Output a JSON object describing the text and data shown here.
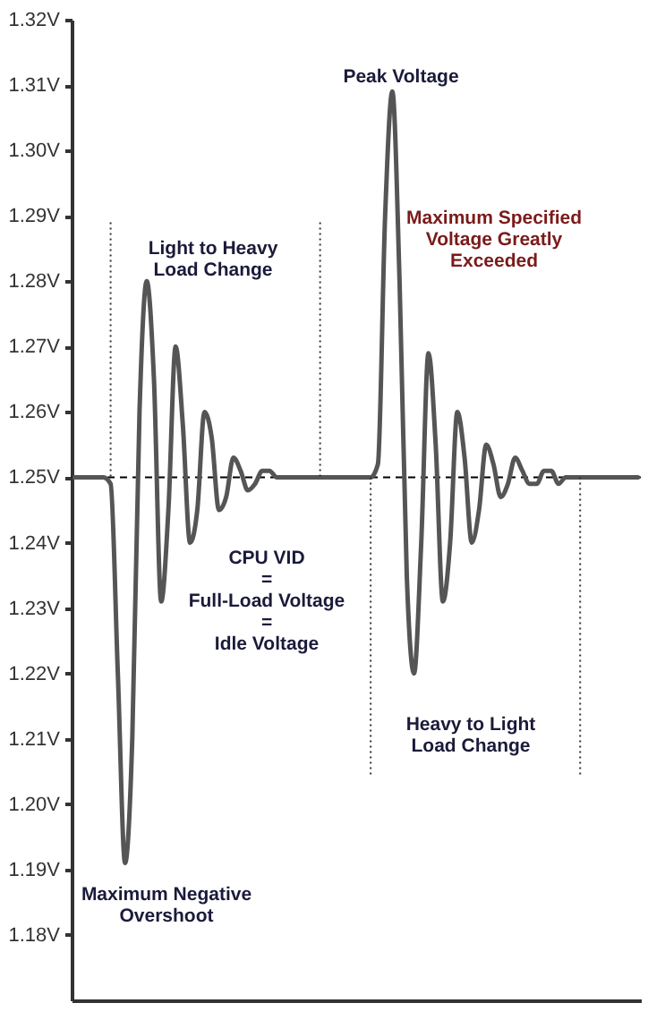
{
  "chart_data": {
    "type": "line",
    "categories": [
      null,
      null,
      null,
      null,
      null,
      null,
      null,
      null,
      null,
      null,
      null,
      null,
      null,
      null,
      null,
      null,
      null,
      null,
      null,
      null,
      null,
      null,
      null,
      null,
      null,
      null,
      null,
      null,
      null,
      null,
      null,
      null,
      null,
      null,
      null,
      null,
      null,
      null,
      null,
      null,
      null,
      null,
      null,
      null,
      null,
      null,
      null,
      null,
      null,
      null,
      null,
      null,
      null,
      null,
      null,
      null,
      null,
      null,
      null,
      null,
      null,
      null,
      null,
      null,
      null,
      null,
      null,
      null,
      null,
      null,
      null,
      null,
      null,
      null,
      null,
      null,
      null,
      null,
      null
    ],
    "series": [
      {
        "color": "#555555",
        "values": [
          1.25,
          1.25,
          1.25,
          1.25,
          1.25,
          1.249,
          1.22,
          1.191,
          1.21,
          1.26,
          1.28,
          1.265,
          1.231,
          1.245,
          1.27,
          1.258,
          1.24,
          1.245,
          1.26,
          1.256,
          1.245,
          1.247,
          1.253,
          1.251,
          1.248,
          1.249,
          1.251,
          1.251,
          1.25,
          1.25,
          1.25,
          1.25,
          1.25,
          1.25,
          1.25,
          1.25,
          1.25,
          1.25,
          1.25,
          1.25,
          1.25,
          1.25,
          1.252,
          1.29,
          1.309,
          1.28,
          1.235,
          1.22,
          1.24,
          1.269,
          1.255,
          1.231,
          1.24,
          1.26,
          1.253,
          1.24,
          1.245,
          1.255,
          1.252,
          1.247,
          1.249,
          1.253,
          1.251,
          1.249,
          1.249,
          1.251,
          1.251,
          1.249,
          1.25,
          1.25,
          1.25,
          1.25,
          1.25,
          1.25,
          1.25,
          1.25,
          1.25,
          1.25,
          1.25
        ]
      }
    ],
    "ylim": [
      1.17,
      1.32
    ],
    "yticks": [
      {
        "value": 1.18,
        "label": "1.18V"
      },
      {
        "value": 1.19,
        "label": "1.19V"
      },
      {
        "value": 1.2,
        "label": "1.20V"
      },
      {
        "value": 1.21,
        "label": "1.21V"
      },
      {
        "value": 1.22,
        "label": "1.22V"
      },
      {
        "value": 1.23,
        "label": "1.23V"
      },
      {
        "value": 1.24,
        "label": "1.24V"
      },
      {
        "value": 1.25,
        "label": "1.25V"
      },
      {
        "value": 1.26,
        "label": "1.26V"
      },
      {
        "value": 1.27,
        "label": "1.27V"
      },
      {
        "value": 1.28,
        "label": "1.28V"
      },
      {
        "value": 1.29,
        "label": "1.29V"
      },
      {
        "value": 1.3,
        "label": "1.30V"
      },
      {
        "value": 1.31,
        "label": "1.31V"
      },
      {
        "value": 1.32,
        "label": "1.32V"
      }
    ],
    "ref_lines": [
      {
        "axis": "y",
        "value": 1.25,
        "color": "#000000",
        "line_style": "dashed"
      }
    ],
    "annotations": [
      "Peak Voltage",
      "Maximum Specified\nVoltage Greatly\nExceeded",
      "Light to Heavy\nLoad Change",
      "CPU VID\n=\nFull-Load Voltage\n=\nIdle Voltage",
      "Heavy to Light\nLoad Change",
      "Maximum Negative\nOvershoot"
    ],
    "grid": false,
    "marker": "none",
    "line_style": "solid",
    "tick_labels": "y"
  }
}
